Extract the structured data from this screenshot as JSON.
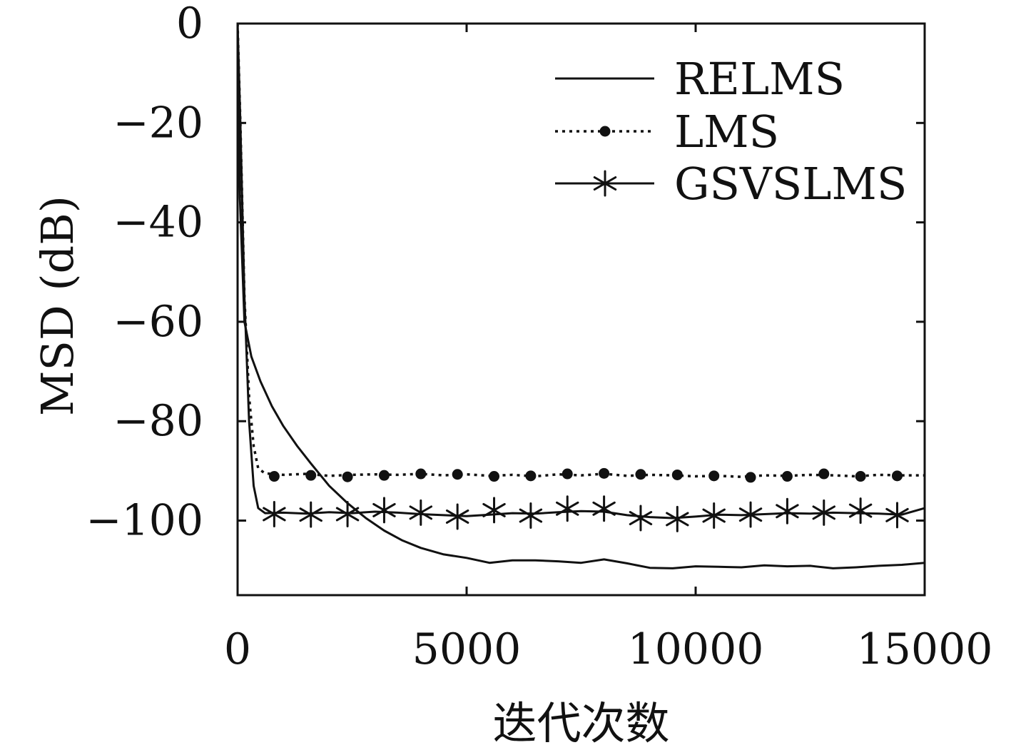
{
  "chart_data": {
    "type": "line",
    "xlabel": "迭代次数",
    "ylabel": "MSD (dB)",
    "xlim": [
      0,
      15000
    ],
    "ylim": [
      -115,
      0
    ],
    "x_ticks": [
      0,
      5000,
      10000,
      15000
    ],
    "x_tick_labels": [
      "0",
      "5000",
      "10000",
      "15000"
    ],
    "y_ticks": [
      0,
      -20,
      -40,
      -60,
      -80,
      -100
    ],
    "y_tick_labels": [
      "0",
      "−20",
      "−40",
      "−60",
      "−80",
      "−100"
    ],
    "grid": false,
    "legend_position": "top-right",
    "colors": {
      "line": "#111111",
      "background": "#ffffff"
    },
    "series": [
      {
        "name": "RELMS",
        "style": "solid",
        "marker": "none",
        "points": [
          [
            0,
            0
          ],
          [
            50,
            -35
          ],
          [
            150,
            -60
          ],
          [
            300,
            -67
          ],
          [
            500,
            -72
          ],
          [
            750,
            -77
          ],
          [
            1000,
            -81
          ],
          [
            1300,
            -85
          ],
          [
            1600,
            -88.5
          ],
          [
            2000,
            -93
          ],
          [
            2400,
            -96.5
          ],
          [
            2800,
            -99.5
          ],
          [
            3200,
            -102
          ],
          [
            3600,
            -104
          ],
          [
            4000,
            -105.5
          ],
          [
            4500,
            -106.8
          ],
          [
            5000,
            -107.5
          ],
          [
            5500,
            -108.5
          ],
          [
            6000,
            -108
          ],
          [
            6500,
            -108
          ],
          [
            7000,
            -108.2
          ],
          [
            7500,
            -108.5
          ],
          [
            8000,
            -107.8
          ],
          [
            8500,
            -108.6
          ],
          [
            9000,
            -109.5
          ],
          [
            9500,
            -109.6
          ],
          [
            10000,
            -109.2
          ],
          [
            10500,
            -109.3
          ],
          [
            11000,
            -109.4
          ],
          [
            11500,
            -109.0
          ],
          [
            12000,
            -109.2
          ],
          [
            12500,
            -109.1
          ],
          [
            13000,
            -109.6
          ],
          [
            13500,
            -109.4
          ],
          [
            14000,
            -109.1
          ],
          [
            14500,
            -108.9
          ],
          [
            15000,
            -108.5
          ]
        ]
      },
      {
        "name": "LMS",
        "style": "dotted",
        "marker": "dot",
        "points": [
          [
            0,
            0
          ],
          [
            60,
            -20
          ],
          [
            150,
            -55
          ],
          [
            250,
            -75
          ],
          [
            350,
            -85
          ],
          [
            450,
            -89.5
          ],
          [
            600,
            -90.5
          ],
          [
            1000,
            -90.8
          ],
          [
            1500,
            -90.6
          ],
          [
            2000,
            -91
          ],
          [
            2500,
            -90.8
          ],
          [
            3000,
            -90.7
          ],
          [
            3500,
            -90.8
          ],
          [
            4000,
            -90.6
          ],
          [
            4500,
            -90.9
          ],
          [
            5000,
            -90.7
          ],
          [
            5500,
            -91
          ],
          [
            6000,
            -90.8
          ],
          [
            6500,
            -91.1
          ],
          [
            7000,
            -90.7
          ],
          [
            7500,
            -90.9
          ],
          [
            8000,
            -90.6
          ],
          [
            8500,
            -91
          ],
          [
            9000,
            -90.8
          ],
          [
            9500,
            -90.9
          ],
          [
            10000,
            -91.1
          ],
          [
            10500,
            -91
          ],
          [
            11000,
            -91.2
          ],
          [
            11500,
            -90.9
          ],
          [
            12000,
            -91
          ],
          [
            12500,
            -90.8
          ],
          [
            13000,
            -90.9
          ],
          [
            13500,
            -91.1
          ],
          [
            14000,
            -90.8
          ],
          [
            14500,
            -90.9
          ],
          [
            15000,
            -90.9
          ]
        ],
        "marker_x": [
          800,
          1600,
          2400,
          3200,
          4000,
          4800,
          5600,
          6400,
          7200,
          8000,
          8800,
          9600,
          10400,
          11200,
          12000,
          12800,
          13600,
          14400
        ],
        "marker_y": [
          -91.1,
          -90.9,
          -91.2,
          -90.9,
          -90.6,
          -90.7,
          -91.1,
          -91,
          -90.6,
          -90.5,
          -90.7,
          -90.8,
          -91,
          -91.3,
          -91.1,
          -90.6,
          -91.1,
          -91
        ]
      },
      {
        "name": "GSVSLMS",
        "style": "solid",
        "marker": "asterisk",
        "points": [
          [
            0,
            0
          ],
          [
            60,
            -20
          ],
          [
            150,
            -55
          ],
          [
            250,
            -80
          ],
          [
            350,
            -93
          ],
          [
            450,
            -97.5
          ],
          [
            600,
            -98.5
          ],
          [
            1000,
            -98.4
          ],
          [
            1500,
            -98.6
          ],
          [
            2000,
            -98.3
          ],
          [
            2500,
            -98.5
          ],
          [
            3000,
            -98.2
          ],
          [
            3500,
            -98.4
          ],
          [
            4000,
            -98.7
          ],
          [
            4500,
            -98.9
          ],
          [
            5000,
            -99.1
          ],
          [
            5500,
            -98.8
          ],
          [
            6000,
            -98.5
          ],
          [
            6500,
            -98.6
          ],
          [
            7000,
            -98.3
          ],
          [
            7500,
            -98.1
          ],
          [
            8000,
            -98.2
          ],
          [
            8500,
            -98.9
          ],
          [
            9000,
            -99.3
          ],
          [
            9500,
            -99.5
          ],
          [
            10000,
            -99.2
          ],
          [
            10500,
            -98.8
          ],
          [
            11000,
            -98.9
          ],
          [
            11500,
            -98.7
          ],
          [
            12000,
            -98.5
          ],
          [
            12500,
            -98.6
          ],
          [
            13000,
            -98.4
          ],
          [
            13500,
            -98.5
          ],
          [
            14000,
            -98.6
          ],
          [
            14500,
            -98.8
          ],
          [
            15000,
            -97.5
          ]
        ],
        "marker_x": [
          800,
          1600,
          2400,
          3200,
          4000,
          4800,
          5600,
          6400,
          7200,
          8000,
          8800,
          9600,
          10400,
          11200,
          12000,
          12800,
          13600,
          14400
        ],
        "marker_y": [
          -98.7,
          -98.8,
          -98.7,
          -97.9,
          -98.4,
          -99.2,
          -97.9,
          -99,
          -97.6,
          -97.6,
          -99.5,
          -99.7,
          -99,
          -98.8,
          -98.1,
          -98.4,
          -98,
          -98.9
        ]
      }
    ]
  }
}
